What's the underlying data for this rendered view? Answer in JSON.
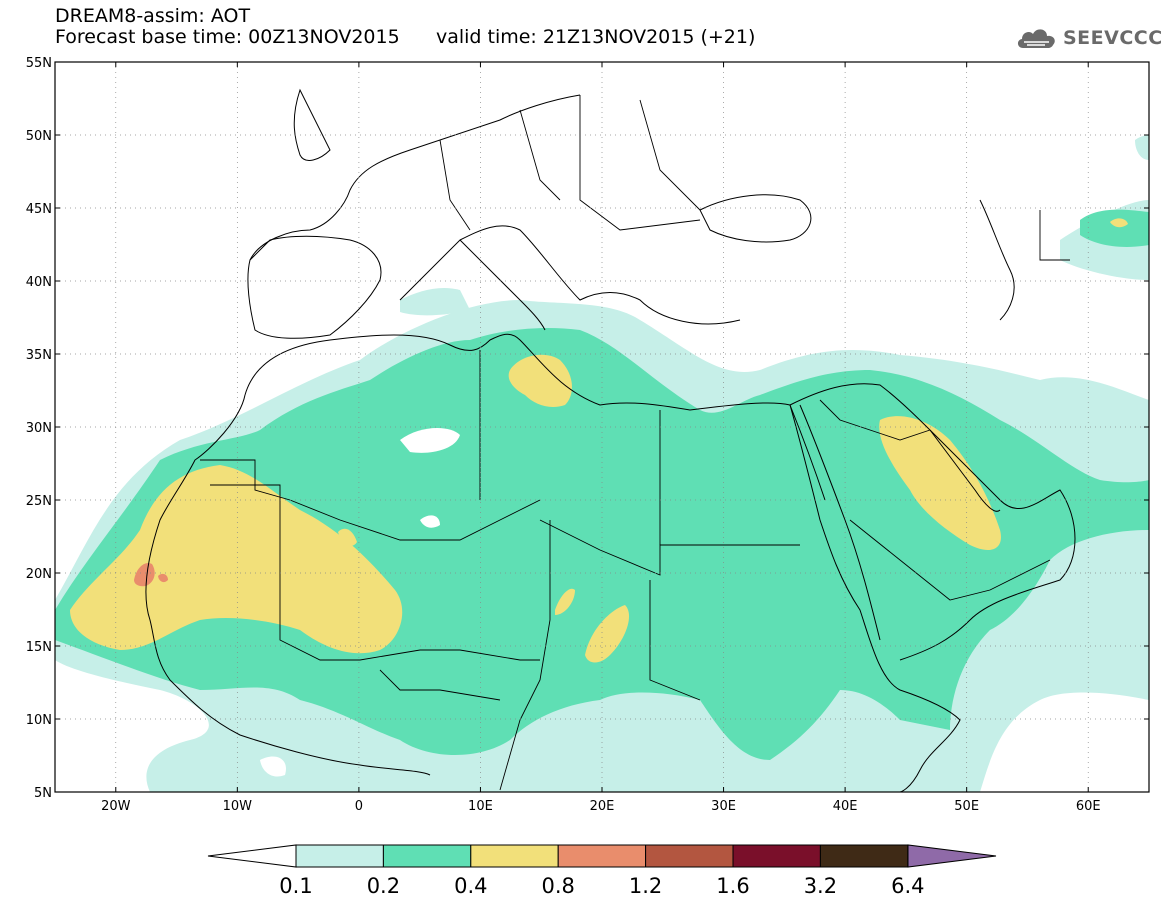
{
  "header": {
    "title": "DREAM8-assim: AOT",
    "forecast_base": "Forecast base time: 00Z13NOV2015",
    "valid_time": "valid time: 21Z13NOV2015 (+21)"
  },
  "logo": {
    "text": "SEEVCCC",
    "icon": "cloud-icon"
  },
  "map": {
    "lat_labels": [
      "55N",
      "50N",
      "45N",
      "40N",
      "35N",
      "30N",
      "25N",
      "20N",
      "15N",
      "10N",
      "5N"
    ],
    "lon_labels": [
      "20W",
      "10W",
      "0",
      "10E",
      "20E",
      "30E",
      "40E",
      "50E",
      "60E"
    ],
    "colors": {
      "c01": "#c6efe8",
      "c02": "#5fdfb4",
      "c04": "#f2e07a",
      "c08": "#e98d6c",
      "c12": "#b35640",
      "c16": "#7a0f2a",
      "c32": "#3f2a16",
      "c64": "#8f6aa8"
    }
  },
  "colorbar": {
    "labels": [
      "0.1",
      "0.2",
      "0.4",
      "0.8",
      "1.2",
      "1.6",
      "3.2",
      "6.4"
    ],
    "colors": [
      "#c6efe8",
      "#5fdfb4",
      "#f2e07a",
      "#e98d6c",
      "#b35640",
      "#7a0f2a",
      "#3f2a16"
    ],
    "low_color": "#ffffff",
    "high_color": "#8f6aa8"
  }
}
